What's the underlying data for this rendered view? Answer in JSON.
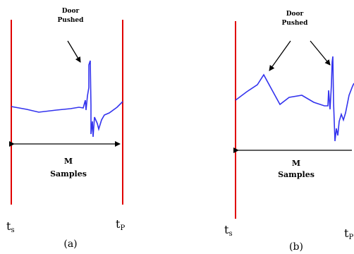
{
  "colors": {
    "boundary": "#e00000",
    "signal": "#3333ee",
    "arrow": "#000000"
  },
  "panel_a": {
    "annotation_line1": "Door",
    "annotation_line2": "Pushed",
    "span_line1": "M",
    "span_line2": "Samples",
    "t_start_main": "t",
    "t_start_sub": "s",
    "t_end_main": "t",
    "t_end_sub": "P",
    "caption": "(a)"
  },
  "panel_b": {
    "annotation_line1": "Door",
    "annotation_line2": "Pushed",
    "span_line1": "M",
    "span_line2": "Samples",
    "t_start_main": "t",
    "t_start_sub": "s",
    "t_end_main": "t",
    "t_end_sub": "P",
    "caption": "(b)"
  }
}
